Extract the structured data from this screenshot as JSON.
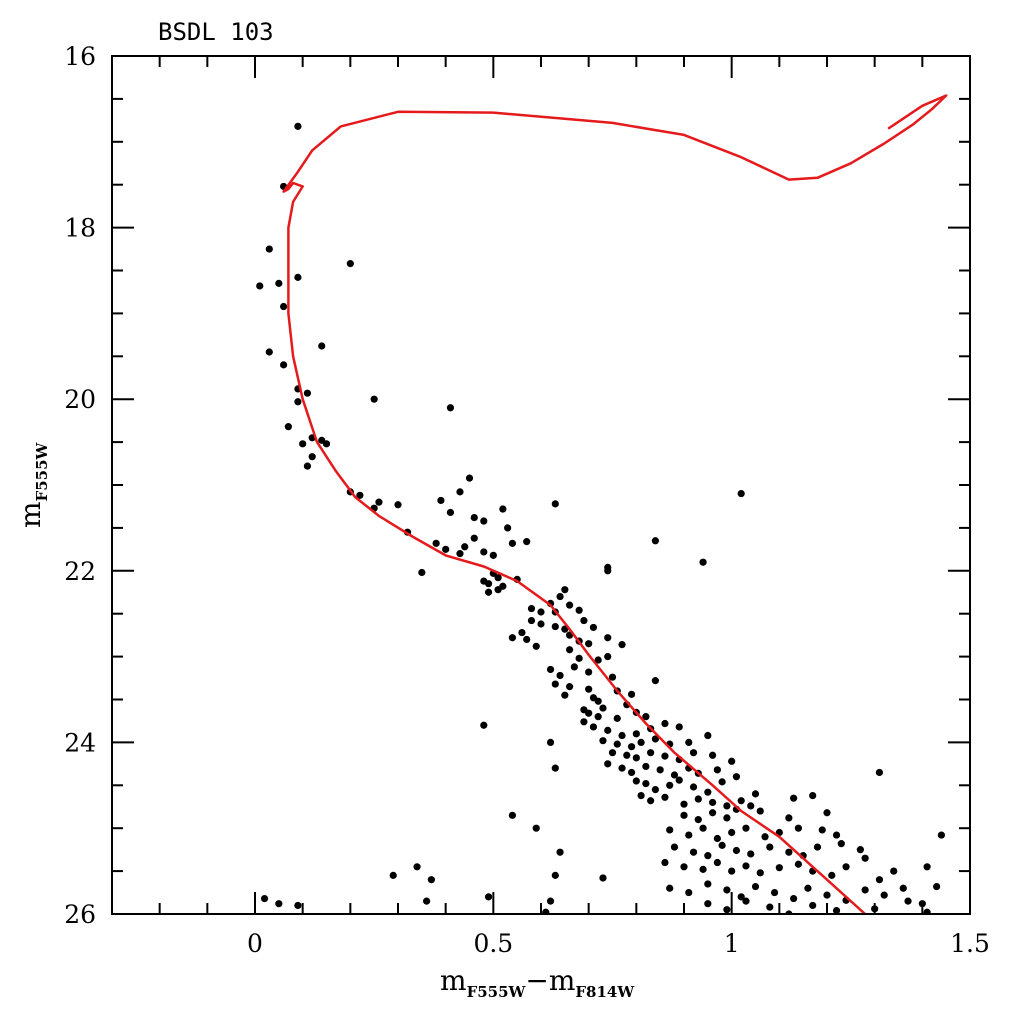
{
  "chart_data": {
    "type": "scatter",
    "title": "BSDL 103",
    "xlabel": {
      "main": "m",
      "sub": "F555W",
      "minus": "−",
      "main2": "m",
      "sub2": "F814W"
    },
    "ylabel": {
      "main": "m",
      "sub": "F555W"
    },
    "xlim": [
      -0.3,
      1.5
    ],
    "ylim": [
      26,
      16
    ],
    "y_inverted": true,
    "x_ticks": [
      0,
      0.5,
      1,
      1.5
    ],
    "x_tick_labels": [
      "0",
      "0.5",
      "1",
      "1.5"
    ],
    "y_ticks": [
      16,
      18,
      20,
      22,
      24,
      26
    ],
    "y_tick_labels": [
      "16",
      "18",
      "20",
      "22",
      "24",
      "26"
    ],
    "grid": false,
    "legend": "none",
    "colors": {
      "points": "#000000",
      "isochrone": "#e41a1c",
      "frame": "#000000"
    },
    "series": [
      {
        "kind": "points",
        "points": [
          [
            0.09,
            16.82
          ],
          [
            0.06,
            17.52
          ],
          [
            0.03,
            18.25
          ],
          [
            0.01,
            18.68
          ],
          [
            0.05,
            18.65
          ],
          [
            0.09,
            18.58
          ],
          [
            0.2,
            18.42
          ],
          [
            0.06,
            18.92
          ],
          [
            0.03,
            19.45
          ],
          [
            0.06,
            19.6
          ],
          [
            0.14,
            19.38
          ],
          [
            0.09,
            19.88
          ],
          [
            0.11,
            19.93
          ],
          [
            0.09,
            20.03
          ],
          [
            0.25,
            20.0
          ],
          [
            0.41,
            20.1
          ],
          [
            0.07,
            20.32
          ],
          [
            0.12,
            20.45
          ],
          [
            0.14,
            20.48
          ],
          [
            0.1,
            20.52
          ],
          [
            0.15,
            20.52
          ],
          [
            0.12,
            20.67
          ],
          [
            0.11,
            20.78
          ],
          [
            0.2,
            21.08
          ],
          [
            0.22,
            21.12
          ],
          [
            0.26,
            21.2
          ],
          [
            0.3,
            21.23
          ],
          [
            0.25,
            21.27
          ],
          [
            0.45,
            20.92
          ],
          [
            0.43,
            21.08
          ],
          [
            0.39,
            21.18
          ],
          [
            0.41,
            21.32
          ],
          [
            0.46,
            21.38
          ],
          [
            0.52,
            21.28
          ],
          [
            0.63,
            21.22
          ],
          [
            1.02,
            21.1
          ],
          [
            0.32,
            21.55
          ],
          [
            0.48,
            21.42
          ],
          [
            0.53,
            21.5
          ],
          [
            0.35,
            22.02
          ],
          [
            0.38,
            21.68
          ],
          [
            0.4,
            21.75
          ],
          [
            0.43,
            21.8
          ],
          [
            0.44,
            21.72
          ],
          [
            0.46,
            21.62
          ],
          [
            0.48,
            21.78
          ],
          [
            0.5,
            21.82
          ],
          [
            0.54,
            21.68
          ],
          [
            0.57,
            21.66
          ],
          [
            0.84,
            21.65
          ],
          [
            0.94,
            21.9
          ],
          [
            0.74,
            21.96
          ],
          [
            0.74,
            22.0
          ],
          [
            0.5,
            22.03
          ],
          [
            0.51,
            22.08
          ],
          [
            0.48,
            22.12
          ],
          [
            0.49,
            22.15
          ],
          [
            0.52,
            22.18
          ],
          [
            0.55,
            22.1
          ],
          [
            0.49,
            22.25
          ],
          [
            0.51,
            22.22
          ],
          [
            0.65,
            22.22
          ],
          [
            0.64,
            22.3
          ],
          [
            0.62,
            22.38
          ],
          [
            0.66,
            22.4
          ],
          [
            0.58,
            22.44
          ],
          [
            0.6,
            22.48
          ],
          [
            0.63,
            22.48
          ],
          [
            0.68,
            22.46
          ],
          [
            0.69,
            22.58
          ],
          [
            0.58,
            22.58
          ],
          [
            0.6,
            22.62
          ],
          [
            0.63,
            22.65
          ],
          [
            0.65,
            22.68
          ],
          [
            0.71,
            22.66
          ],
          [
            0.56,
            22.72
          ],
          [
            0.54,
            22.78
          ],
          [
            0.57,
            22.8
          ],
          [
            0.66,
            22.75
          ],
          [
            0.68,
            22.82
          ],
          [
            0.7,
            22.85
          ],
          [
            0.74,
            22.78
          ],
          [
            0.77,
            22.86
          ],
          [
            0.59,
            22.88
          ],
          [
            0.66,
            22.92
          ],
          [
            0.68,
            23.02
          ],
          [
            0.72,
            23.04
          ],
          [
            0.74,
            23.0
          ],
          [
            0.67,
            23.12
          ],
          [
            0.62,
            23.15
          ],
          [
            0.64,
            23.22
          ],
          [
            0.7,
            23.18
          ],
          [
            0.63,
            23.32
          ],
          [
            0.66,
            23.35
          ],
          [
            0.75,
            23.24
          ],
          [
            0.84,
            23.28
          ],
          [
            0.65,
            23.45
          ],
          [
            0.7,
            23.38
          ],
          [
            0.76,
            23.4
          ],
          [
            0.79,
            23.44
          ],
          [
            0.71,
            23.48
          ],
          [
            0.72,
            23.52
          ],
          [
            0.78,
            23.56
          ],
          [
            0.69,
            23.62
          ],
          [
            0.73,
            23.6
          ],
          [
            0.7,
            23.66
          ],
          [
            0.72,
            23.7
          ],
          [
            0.76,
            23.72
          ],
          [
            0.8,
            23.65
          ],
          [
            0.82,
            23.7
          ],
          [
            0.48,
            23.8
          ],
          [
            0.69,
            23.76
          ],
          [
            0.71,
            23.82
          ],
          [
            0.74,
            23.86
          ],
          [
            0.77,
            23.92
          ],
          [
            0.8,
            23.9
          ],
          [
            0.83,
            23.84
          ],
          [
            0.86,
            23.78
          ],
          [
            0.89,
            23.82
          ],
          [
            0.73,
            23.98
          ],
          [
            0.76,
            24.02
          ],
          [
            0.79,
            24.05
          ],
          [
            0.81,
            24.0
          ],
          [
            0.84,
            23.96
          ],
          [
            0.87,
            24.02
          ],
          [
            0.91,
            24.0
          ],
          [
            0.95,
            23.92
          ],
          [
            0.62,
            24.0
          ],
          [
            0.75,
            24.12
          ],
          [
            0.78,
            24.15
          ],
          [
            0.8,
            24.18
          ],
          [
            0.83,
            24.12
          ],
          [
            0.86,
            24.16
          ],
          [
            0.89,
            24.2
          ],
          [
            0.92,
            24.12
          ],
          [
            0.96,
            24.15
          ],
          [
            0.74,
            24.25
          ],
          [
            0.77,
            24.3
          ],
          [
            0.79,
            24.35
          ],
          [
            0.82,
            24.28
          ],
          [
            0.85,
            24.32
          ],
          [
            0.88,
            24.38
          ],
          [
            0.91,
            24.3
          ],
          [
            0.93,
            24.36
          ],
          [
            0.97,
            24.32
          ],
          [
            1.0,
            24.22
          ],
          [
            0.63,
            24.3
          ],
          [
            0.8,
            24.45
          ],
          [
            0.82,
            24.48
          ],
          [
            0.84,
            24.55
          ],
          [
            0.87,
            24.5
          ],
          [
            0.89,
            24.44
          ],
          [
            0.92,
            24.52
          ],
          [
            0.95,
            24.58
          ],
          [
            0.98,
            24.46
          ],
          [
            1.01,
            24.4
          ],
          [
            0.81,
            24.62
          ],
          [
            0.83,
            24.68
          ],
          [
            0.86,
            24.64
          ],
          [
            0.9,
            24.72
          ],
          [
            0.93,
            24.66
          ],
          [
            0.96,
            24.7
          ],
          [
            0.99,
            24.74
          ],
          [
            1.02,
            24.68
          ],
          [
            1.05,
            24.6
          ],
          [
            1.13,
            24.65
          ],
          [
            1.17,
            24.62
          ],
          [
            1.31,
            24.35
          ],
          [
            0.9,
            24.85
          ],
          [
            0.93,
            24.9
          ],
          [
            0.96,
            24.82
          ],
          [
            0.99,
            24.88
          ],
          [
            1.01,
            24.78
          ],
          [
            1.04,
            24.74
          ],
          [
            1.06,
            24.8
          ],
          [
            1.12,
            24.88
          ],
          [
            1.2,
            24.82
          ],
          [
            0.54,
            24.85
          ],
          [
            0.59,
            25.0
          ],
          [
            0.87,
            25.02
          ],
          [
            0.91,
            25.08
          ],
          [
            0.94,
            25.0
          ],
          [
            0.97,
            25.12
          ],
          [
            1.0,
            25.05
          ],
          [
            1.03,
            25.0
          ],
          [
            1.07,
            25.1
          ],
          [
            1.1,
            25.05
          ],
          [
            1.14,
            25.0
          ],
          [
            1.19,
            25.02
          ],
          [
            1.22,
            25.08
          ],
          [
            1.44,
            25.08
          ],
          [
            0.88,
            25.22
          ],
          [
            0.92,
            25.28
          ],
          [
            0.95,
            25.32
          ],
          [
            0.98,
            25.2
          ],
          [
            1.01,
            25.26
          ],
          [
            1.04,
            25.3
          ],
          [
            1.08,
            25.22
          ],
          [
            1.12,
            25.28
          ],
          [
            1.15,
            25.32
          ],
          [
            1.18,
            25.22
          ],
          [
            1.23,
            25.18
          ],
          [
            1.27,
            25.25
          ],
          [
            0.64,
            25.28
          ],
          [
            0.86,
            25.4
          ],
          [
            0.9,
            25.45
          ],
          [
            0.94,
            25.48
          ],
          [
            0.97,
            25.4
          ],
          [
            1.0,
            25.5
          ],
          [
            1.03,
            25.44
          ],
          [
            1.06,
            25.52
          ],
          [
            1.1,
            25.46
          ],
          [
            1.14,
            25.42
          ],
          [
            1.17,
            25.5
          ],
          [
            1.21,
            25.55
          ],
          [
            1.24,
            25.45
          ],
          [
            1.28,
            25.35
          ],
          [
            1.31,
            25.6
          ],
          [
            1.34,
            25.5
          ],
          [
            1.41,
            25.45
          ],
          [
            0.29,
            25.55
          ],
          [
            0.34,
            25.45
          ],
          [
            0.37,
            25.6
          ],
          [
            0.63,
            25.55
          ],
          [
            0.73,
            25.58
          ],
          [
            0.87,
            25.7
          ],
          [
            0.91,
            25.75
          ],
          [
            0.95,
            25.65
          ],
          [
            0.99,
            25.72
          ],
          [
            1.02,
            25.8
          ],
          [
            1.05,
            25.68
          ],
          [
            1.09,
            25.75
          ],
          [
            1.13,
            25.82
          ],
          [
            1.16,
            25.7
          ],
          [
            1.2,
            25.78
          ],
          [
            1.24,
            25.84
          ],
          [
            1.28,
            25.72
          ],
          [
            1.32,
            25.78
          ],
          [
            1.36,
            25.7
          ],
          [
            1.4,
            25.88
          ],
          [
            1.43,
            25.68
          ],
          [
            0.95,
            25.88
          ],
          [
            0.99,
            25.95
          ],
          [
            1.03,
            25.85
          ],
          [
            1.08,
            25.92
          ],
          [
            1.12,
            26.0
          ],
          [
            1.17,
            25.9
          ],
          [
            1.22,
            25.96
          ],
          [
            1.3,
            25.94
          ],
          [
            1.37,
            25.85
          ],
          [
            1.41,
            25.98
          ],
          [
            0.36,
            25.85
          ],
          [
            0.49,
            25.8
          ],
          [
            0.62,
            25.85
          ],
          [
            0.02,
            25.82
          ],
          [
            0.05,
            25.88
          ],
          [
            0.09,
            25.9
          ],
          [
            0.61,
            25.98
          ]
        ]
      },
      {
        "kind": "isochrone",
        "points": [
          [
            1.28,
            26.0
          ],
          [
            1.2,
            25.6
          ],
          [
            1.1,
            25.1
          ],
          [
            1.02,
            24.8
          ],
          [
            0.96,
            24.5
          ],
          [
            0.88,
            24.12
          ],
          [
            0.82,
            23.78
          ],
          [
            0.76,
            23.4
          ],
          [
            0.7,
            22.98
          ],
          [
            0.66,
            22.68
          ],
          [
            0.62,
            22.4
          ],
          [
            0.55,
            22.12
          ],
          [
            0.48,
            21.95
          ],
          [
            0.4,
            21.82
          ],
          [
            0.33,
            21.6
          ],
          [
            0.26,
            21.36
          ],
          [
            0.21,
            21.14
          ],
          [
            0.17,
            20.84
          ],
          [
            0.13,
            20.5
          ],
          [
            0.1,
            20.0
          ],
          [
            0.08,
            19.5
          ],
          [
            0.07,
            19.0
          ],
          [
            0.07,
            18.5
          ],
          [
            0.07,
            18.0
          ],
          [
            0.08,
            17.7
          ],
          [
            0.1,
            17.52
          ],
          [
            0.08,
            17.48
          ],
          [
            0.07,
            17.55
          ],
          [
            0.06,
            17.58
          ],
          [
            0.09,
            17.35
          ],
          [
            0.12,
            17.1
          ],
          [
            0.18,
            16.82
          ],
          [
            0.3,
            16.65
          ],
          [
            0.5,
            16.66
          ],
          [
            0.75,
            16.78
          ],
          [
            0.9,
            16.92
          ],
          [
            1.02,
            17.18
          ],
          [
            1.12,
            17.44
          ],
          [
            1.18,
            17.42
          ],
          [
            1.25,
            17.25
          ],
          [
            1.32,
            17.02
          ],
          [
            1.38,
            16.8
          ],
          [
            1.42,
            16.62
          ],
          [
            1.45,
            16.46
          ],
          [
            1.4,
            16.58
          ],
          [
            1.33,
            16.84
          ]
        ]
      }
    ]
  }
}
